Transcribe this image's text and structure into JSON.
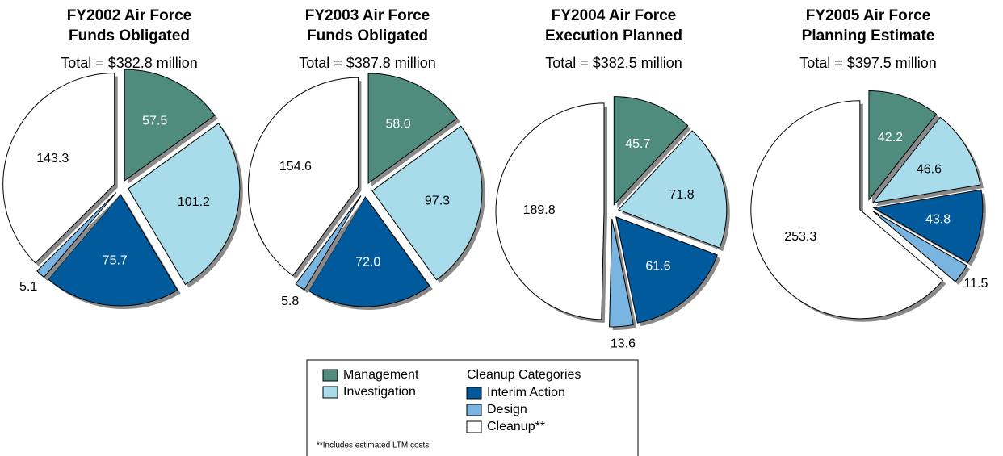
{
  "chart_data": [
    {
      "type": "pie",
      "title": [
        "FY2002 Air Force",
        "Funds Obligated"
      ],
      "subtitle": "Total = $382.8 million",
      "values": [
        57.5,
        101.2,
        75.7,
        5.1,
        143.3
      ],
      "value_labels": [
        "57.5",
        "101.2",
        "75.7",
        "5.1",
        "143.3"
      ]
    },
    {
      "type": "pie",
      "title": [
        "FY2003 Air Force",
        "Funds Obligated"
      ],
      "subtitle": "Total = $387.8 million",
      "values": [
        58.0,
        97.3,
        72.0,
        5.8,
        154.6
      ],
      "value_labels": [
        "58.0",
        "97.3",
        "72.0",
        "5.8",
        "154.6"
      ]
    },
    {
      "type": "pie",
      "title": [
        "FY2004 Air Force",
        "Execution Planned"
      ],
      "subtitle": "Total = $382.5 million",
      "values": [
        45.7,
        71.8,
        61.6,
        13.6,
        189.8
      ],
      "value_labels": [
        "45.7",
        "71.8",
        "61.6",
        "13.6",
        "189.8"
      ]
    },
    {
      "type": "pie",
      "title": [
        "FY2005 Air Force",
        "Planning Estimate"
      ],
      "subtitle": "Total = $397.5 million",
      "values": [
        42.2,
        46.6,
        43.8,
        11.5,
        253.3
      ],
      "value_labels": [
        "42.2",
        "46.6",
        "43.8",
        "11.5",
        "253.3"
      ]
    }
  ],
  "legend": {
    "categories": [
      "Management",
      "Investigation",
      "Interim Action",
      "Design",
      "Cleanup**"
    ],
    "colors": [
      "#4f8c7e",
      "#a8dcea",
      "#005a9c",
      "#7ab4e0",
      "#ffffff"
    ],
    "group_label": "Cleanup Categories",
    "footnote": "**Includes estimated LTM costs"
  }
}
